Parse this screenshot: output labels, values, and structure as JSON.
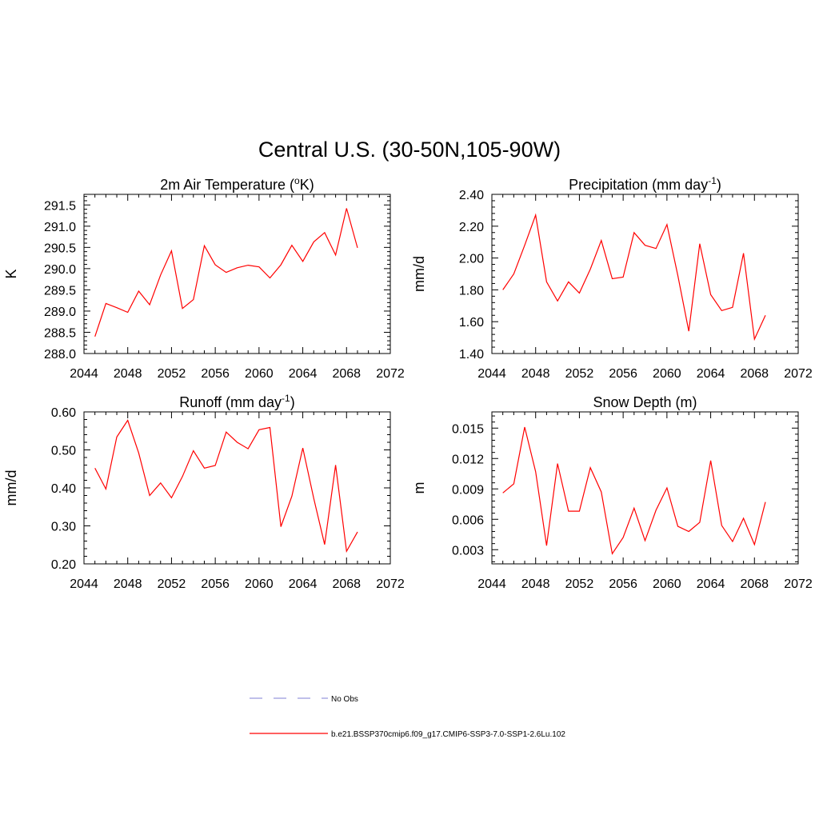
{
  "title": "Central U.S. (30-50N,105-90W)",
  "legend": [
    {
      "label": "No Obs",
      "color": "#9999dd",
      "dashed": true
    },
    {
      "label": "b.e21.BSSP370cmip6.f09_g17.CMIP6-SSP3-7.0-SSP1-2.6Lu.102",
      "color": "#ff0000",
      "dashed": false
    }
  ],
  "chart_data": [
    {
      "type": "line",
      "title": "2m Air Temperature (",
      "title_sup": "o",
      "title_tail": "K)",
      "ylabel": "K",
      "xlim": [
        2044,
        2072
      ],
      "xticks": [
        "2044",
        "2048",
        "2052",
        "2056",
        "2060",
        "2064",
        "2068",
        "2072"
      ],
      "ylim": [
        288.0,
        291.75
      ],
      "yticks": [
        "288.0",
        "288.5",
        "289.0",
        "289.5",
        "290.0",
        "290.5",
        "291.0",
        "291.5"
      ],
      "ytick_values": [
        288.0,
        288.5,
        289.0,
        289.5,
        290.0,
        290.5,
        291.0,
        291.5
      ],
      "x": [
        2045,
        2046,
        2047,
        2048,
        2049,
        2050,
        2051,
        2052,
        2053,
        2054,
        2055,
        2056,
        2057,
        2058,
        2059,
        2060,
        2061,
        2062,
        2063,
        2064,
        2065,
        2066,
        2067,
        2068,
        2069
      ],
      "series": [
        {
          "name": "b.e21.BSSP370cmip6.f09_g17.CMIP6-SSP3-7.0-SSP1-2.6Lu.102",
          "color": "#ff0000",
          "values": [
            288.4,
            289.18,
            289.08,
            288.97,
            289.47,
            289.15,
            289.85,
            290.42,
            289.06,
            289.27,
            290.54,
            290.09,
            289.91,
            290.02,
            290.08,
            290.04,
            289.78,
            290.09,
            290.55,
            290.17,
            290.63,
            290.85,
            290.32,
            291.42,
            290.49
          ]
        }
      ]
    },
    {
      "type": "line",
      "title": "Precipitation (mm day",
      "title_sup": "-1",
      "title_tail": ")",
      "ylabel": "mm/d",
      "xlim": [
        2044,
        2072
      ],
      "xticks": [
        "2044",
        "2048",
        "2052",
        "2056",
        "2060",
        "2064",
        "2068",
        "2072"
      ],
      "ylim": [
        1.4,
        2.4
      ],
      "yticks": [
        "1.40",
        "1.60",
        "1.80",
        "2.00",
        "2.20",
        "2.40"
      ],
      "ytick_values": [
        1.4,
        1.6,
        1.8,
        2.0,
        2.2,
        2.4
      ],
      "x": [
        2045,
        2046,
        2047,
        2048,
        2049,
        2050,
        2051,
        2052,
        2053,
        2054,
        2055,
        2056,
        2057,
        2058,
        2059,
        2060,
        2061,
        2062,
        2063,
        2064,
        2065,
        2066,
        2067,
        2068,
        2069
      ],
      "series": [
        {
          "name": "b.e21.BSSP370cmip6.f09_g17.CMIP6-SSP3-7.0-SSP1-2.6Lu.102",
          "color": "#ff0000",
          "values": [
            1.8,
            1.9,
            2.08,
            2.27,
            1.85,
            1.73,
            1.85,
            1.78,
            1.93,
            2.11,
            1.87,
            1.88,
            2.16,
            2.08,
            2.06,
            2.21,
            1.89,
            1.54,
            2.09,
            1.77,
            1.67,
            1.69,
            2.03,
            1.49,
            1.64
          ]
        }
      ]
    },
    {
      "type": "line",
      "title": "Runoff (mm day",
      "title_sup": "-1",
      "title_tail": ")",
      "ylabel": "mm/d",
      "xlim": [
        2044,
        2072
      ],
      "xticks": [
        "2044",
        "2048",
        "2052",
        "2056",
        "2060",
        "2064",
        "2068",
        "2072"
      ],
      "ylim": [
        0.2,
        0.6
      ],
      "yticks": [
        "0.20",
        "0.30",
        "0.40",
        "0.50",
        "0.60"
      ],
      "ytick_values": [
        0.2,
        0.3,
        0.4,
        0.5,
        0.6
      ],
      "x": [
        2045,
        2046,
        2047,
        2048,
        2049,
        2050,
        2051,
        2052,
        2053,
        2054,
        2055,
        2056,
        2057,
        2058,
        2059,
        2060,
        2061,
        2062,
        2063,
        2064,
        2065,
        2066,
        2067,
        2068,
        2069
      ],
      "series": [
        {
          "name": "b.e21.BSSP370cmip6.f09_g17.CMIP6-SSP3-7.0-SSP1-2.6Lu.102",
          "color": "#ff0000",
          "values": [
            0.452,
            0.397,
            0.534,
            0.578,
            0.492,
            0.38,
            0.413,
            0.374,
            0.43,
            0.498,
            0.452,
            0.459,
            0.547,
            0.52,
            0.503,
            0.553,
            0.559,
            0.298,
            0.378,
            0.505,
            0.372,
            0.251,
            0.46,
            0.233,
            0.284
          ]
        }
      ]
    },
    {
      "type": "line",
      "title": "Snow Depth (m)",
      "title_sup": "",
      "title_tail": "",
      "ylabel": "m",
      "xlim": [
        2044,
        2072
      ],
      "xticks": [
        "2044",
        "2048",
        "2052",
        "2056",
        "2060",
        "2064",
        "2068",
        "2072"
      ],
      "ylim": [
        0.0016,
        0.0166
      ],
      "yticks": [
        "0.003",
        "0.006",
        "0.009",
        "0.012",
        "0.015"
      ],
      "ytick_values": [
        0.003,
        0.006,
        0.009,
        0.012,
        0.015
      ],
      "x": [
        2045,
        2046,
        2047,
        2048,
        2049,
        2050,
        2051,
        2052,
        2053,
        2054,
        2055,
        2056,
        2057,
        2058,
        2059,
        2060,
        2061,
        2062,
        2063,
        2064,
        2065,
        2066,
        2067,
        2068,
        2069
      ],
      "series": [
        {
          "name": "b.e21.BSSP370cmip6.f09_g17.CMIP6-SSP3-7.0-SSP1-2.6Lu.102",
          "color": "#ff0000",
          "values": [
            0.0086,
            0.0095,
            0.0151,
            0.0107,
            0.0034,
            0.0115,
            0.0068,
            0.0068,
            0.0111,
            0.0087,
            0.0026,
            0.0042,
            0.0071,
            0.0039,
            0.0069,
            0.0091,
            0.0053,
            0.0048,
            0.0057,
            0.0118,
            0.0054,
            0.0038,
            0.0061,
            0.0035,
            0.0077
          ]
        }
      ]
    }
  ]
}
